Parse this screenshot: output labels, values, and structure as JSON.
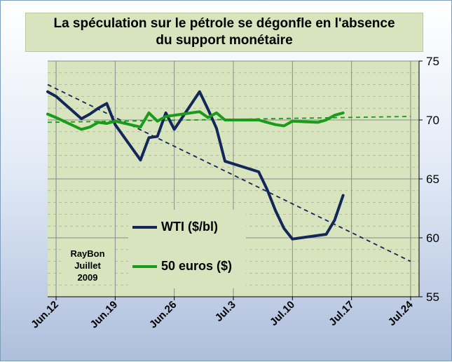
{
  "title": {
    "line1": "La spéculation sur le pétrole se dégonfle en l'absence",
    "line2": "du support monétaire"
  },
  "credit": {
    "name": "RayBon",
    "month": "Juillet",
    "year": "2009"
  },
  "colors": {
    "wti": "#14275a",
    "euros": "#1a9c1a",
    "plot_bg": "#d7e4bd"
  },
  "chart_data": {
    "type": "line",
    "title": "La spéculation sur le pétrole se dégonfle en l'absence du support monétaire",
    "ylim": [
      55,
      75
    ],
    "yticks": [
      "55",
      "60",
      "65",
      "70",
      "75"
    ],
    "xlim": [
      "2009-06-11",
      "2009-07-25"
    ],
    "xticks": [
      "Jun.12",
      "Jun.19",
      "Jun.26",
      "Jul.3",
      "Jul.10",
      "Jul.17",
      "Jul.24"
    ],
    "legend_position": "bottom-left inside plot",
    "grid": true,
    "series": [
      {
        "name": "WTI ($/bl)",
        "x": [
          "2009-06-11",
          "2009-06-12",
          "2009-06-15",
          "2009-06-16",
          "2009-06-17",
          "2009-06-18",
          "2009-06-19",
          "2009-06-22",
          "2009-06-23",
          "2009-06-24",
          "2009-06-25",
          "2009-06-26",
          "2009-06-29",
          "2009-06-30",
          "2009-07-01",
          "2009-07-02",
          "2009-07-06",
          "2009-07-07",
          "2009-07-08",
          "2009-07-09",
          "2009-07-10",
          "2009-07-13",
          "2009-07-14",
          "2009-07-15",
          "2009-07-16"
        ],
        "values": [
          72.4,
          72.0,
          70.1,
          70.5,
          71.0,
          71.4,
          69.6,
          66.6,
          68.5,
          68.6,
          70.6,
          69.2,
          72.4,
          70.9,
          69.3,
          66.5,
          65.6,
          64.1,
          62.3,
          60.8,
          59.9,
          60.2,
          60.3,
          61.5,
          63.6
        ]
      },
      {
        "name": "50 euros ($)",
        "x": [
          "2009-06-11",
          "2009-06-12",
          "2009-06-15",
          "2009-06-16",
          "2009-06-17",
          "2009-06-18",
          "2009-06-19",
          "2009-06-22",
          "2009-06-23",
          "2009-06-24",
          "2009-06-25",
          "2009-06-26",
          "2009-06-29",
          "2009-06-30",
          "2009-07-01",
          "2009-07-02",
          "2009-07-06",
          "2009-07-07",
          "2009-07-08",
          "2009-07-09",
          "2009-07-10",
          "2009-07-13",
          "2009-07-14",
          "2009-07-15",
          "2009-07-16"
        ],
        "values": [
          70.5,
          70.2,
          69.2,
          69.4,
          69.8,
          69.7,
          69.9,
          69.4,
          70.6,
          69.9,
          70.3,
          70.4,
          70.7,
          70.2,
          70.6,
          70.0,
          70.0,
          69.8,
          69.6,
          69.5,
          69.9,
          69.8,
          70.0,
          70.4,
          70.6
        ]
      }
    ],
    "trendlines": [
      {
        "series": "WTI ($/bl)",
        "x": [
          "2009-06-11",
          "2009-07-24"
        ],
        "values": [
          73.0,
          58.0
        ]
      },
      {
        "series": "50 euros ($)",
        "x": [
          "2009-06-11",
          "2009-07-24"
        ],
        "values": [
          69.8,
          70.3
        ]
      }
    ]
  }
}
